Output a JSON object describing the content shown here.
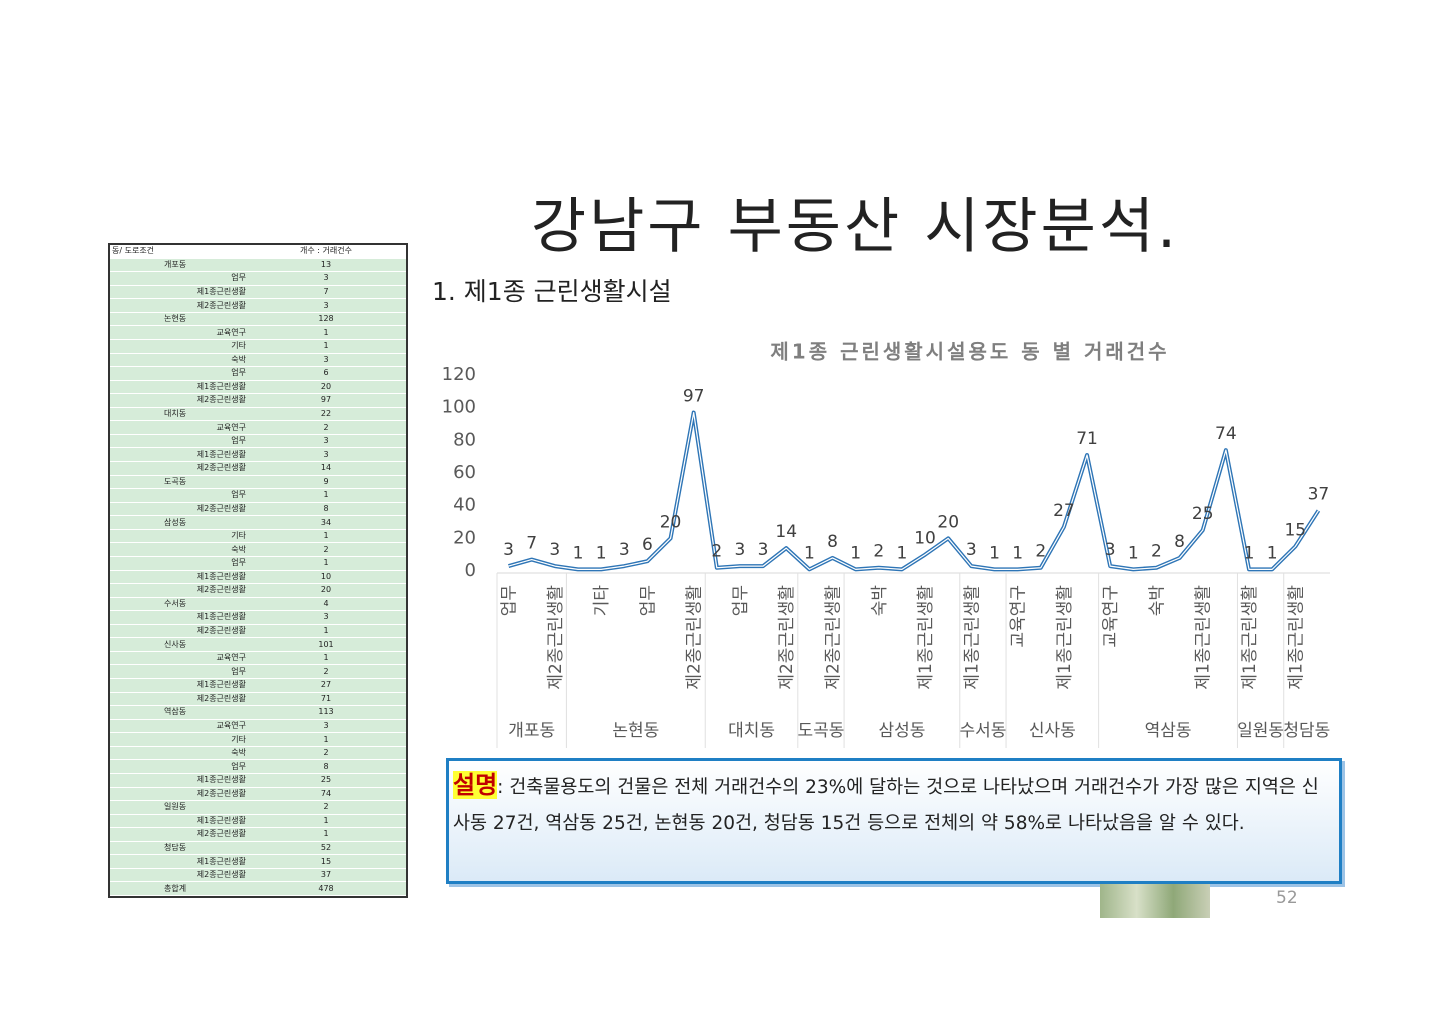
{
  "header": {
    "title": "강남구 부동산 시장분석.",
    "subtitle": "1. 제1종 근린생활시설"
  },
  "table": {
    "header": [
      "동/ 도로조건",
      "개수 : 거래건수"
    ],
    "groups": [
      {
        "name": "개포동",
        "count": 13,
        "items": [
          [
            "업무",
            3
          ],
          [
            "제1종근린생활",
            7
          ],
          [
            "제2종근린생활",
            3
          ]
        ]
      },
      {
        "name": "논현동",
        "count": 128,
        "items": [
          [
            "교육연구",
            1
          ],
          [
            "기타",
            1
          ],
          [
            "숙박",
            3
          ],
          [
            "업무",
            6
          ],
          [
            "제1종근린생활",
            20
          ],
          [
            "제2종근린생활",
            97
          ]
        ]
      },
      {
        "name": "대치동",
        "count": 22,
        "items": [
          [
            "교육연구",
            2
          ],
          [
            "업무",
            3
          ],
          [
            "제1종근린생활",
            3
          ],
          [
            "제2종근린생활",
            14
          ]
        ]
      },
      {
        "name": "도곡동",
        "count": 9,
        "items": [
          [
            "업무",
            1
          ],
          [
            "제2종근린생활",
            8
          ]
        ]
      },
      {
        "name": "삼성동",
        "count": 34,
        "items": [
          [
            "기타",
            1
          ],
          [
            "숙박",
            2
          ],
          [
            "업무",
            1
          ],
          [
            "제1종근린생활",
            10
          ],
          [
            "제2종근린생활",
            20
          ]
        ]
      },
      {
        "name": "수서동",
        "count": 4,
        "items": [
          [
            "제1종근린생활",
            3
          ],
          [
            "제2종근린생활",
            1
          ]
        ]
      },
      {
        "name": "신사동",
        "count": 101,
        "items": [
          [
            "교육연구",
            1
          ],
          [
            "업무",
            2
          ],
          [
            "제1종근린생활",
            27
          ],
          [
            "제2종근린생활",
            71
          ]
        ]
      },
      {
        "name": "역삼동",
        "count": 113,
        "items": [
          [
            "교육연구",
            3
          ],
          [
            "기타",
            1
          ],
          [
            "숙박",
            2
          ],
          [
            "업무",
            8
          ],
          [
            "제1종근린생활",
            25
          ],
          [
            "제2종근린생활",
            74
          ]
        ]
      },
      {
        "name": "일원동",
        "count": 2,
        "items": [
          [
            "제1종근린생활",
            1
          ],
          [
            "제2종근린생활",
            1
          ]
        ]
      },
      {
        "name": "청담동",
        "count": 52,
        "items": [
          [
            "제1종근린생활",
            15
          ],
          [
            "제2종근린생활",
            37
          ]
        ]
      }
    ],
    "total": [
      "총합계",
      478
    ]
  },
  "chart_data": {
    "type": "line",
    "title": "제1종 근린생활시설용도 동 별 거래건수",
    "color": "#2e75b6",
    "categories": [
      "업무",
      null,
      "제2종근린생활",
      null,
      "기타",
      null,
      "업무",
      null,
      "제2종근린생활",
      null,
      "업무",
      null,
      "제2종근린생활",
      null,
      "제2종근린생활",
      null,
      "숙박",
      null,
      "제1종근린생활",
      null,
      "제1종근린생활",
      null,
      "교육연구",
      null,
      "제1종근린생활",
      null,
      "교육연구",
      null,
      "숙박",
      null,
      "제1종근린생활",
      null,
      "제1종근린생활",
      null,
      "제1종근린생활",
      null
    ],
    "group_labels": [
      "개포동",
      null,
      null,
      "논현동",
      null,
      null,
      null,
      null,
      null,
      "대치동",
      null,
      null,
      null,
      "도곡동",
      null,
      "삼성동",
      null,
      null,
      null,
      null,
      "수서동",
      null,
      "신사동",
      null,
      null,
      null,
      "역삼동",
      null,
      null,
      null,
      null,
      null,
      "일원동",
      null,
      "청담동",
      null
    ],
    "values": [
      3,
      7,
      3,
      1,
      1,
      3,
      6,
      20,
      97,
      2,
      3,
      3,
      14,
      1,
      8,
      1,
      2,
      1,
      10,
      20,
      3,
      1,
      1,
      2,
      27,
      71,
      3,
      1,
      2,
      8,
      25,
      74,
      1,
      1,
      15,
      37
    ],
    "ylim": [
      0,
      120
    ],
    "yticks": [
      0,
      20,
      40,
      60,
      80,
      100,
      120
    ]
  },
  "description": {
    "label": "설명",
    "text": ": 건축물용도의 건물은 전체 거래건수의 23%에 달하는 것으로 나타났으며 거래건수가 가장 많은 지역은 신사동 27건, 역삼동 25건, 논현동 20건, 청담동 15건 등으로 전체의 약 58%로 나타났음을 알 수 있다."
  },
  "page_number": "52"
}
